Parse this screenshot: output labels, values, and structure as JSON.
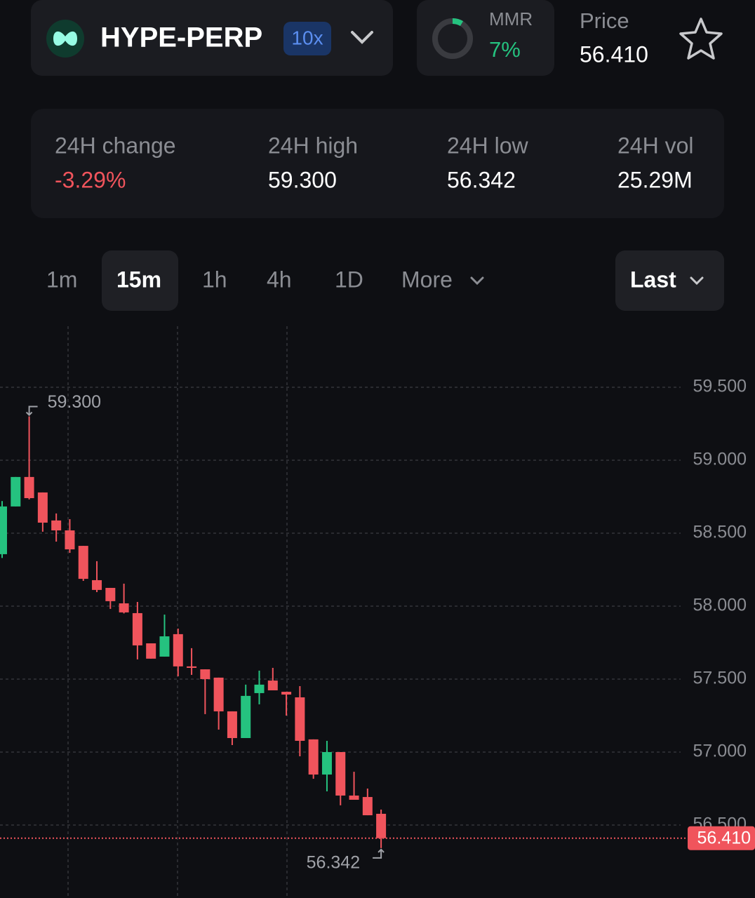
{
  "header": {
    "symbol": "HYPE-PERP",
    "leverage": "10x",
    "mmr_label": "MMR",
    "mmr_value": "7%",
    "price_label": "Price",
    "price_value": "56.410"
  },
  "stats": [
    {
      "label": "24H change",
      "value": "-3.29%"
    },
    {
      "label": "24H high",
      "value": "59.300"
    },
    {
      "label": "24H low",
      "value": "56.342"
    },
    {
      "label": "24H vol",
      "value": "25.29M"
    }
  ],
  "timeframes": [
    "1m",
    "15m",
    "1h",
    "4h",
    "1D",
    "More"
  ],
  "selected_timeframe": "15m",
  "price_mode": "Last",
  "chart_data": {
    "type": "candlestick",
    "up_color": "#25c27f",
    "down_color": "#f0545c",
    "open": [
      58.356,
      58.683,
      58.885,
      58.779,
      58.587,
      58.519,
      58.413,
      58.178,
      58.125,
      58.019,
      57.952,
      57.745,
      57.654,
      57.808,
      57.587,
      57.567,
      57.51,
      57.279,
      57.096,
      57.404,
      57.49,
      57.413,
      57.375,
      57.087,
      56.846,
      57.0,
      56.702,
      56.692,
      56.577
    ],
    "high": [
      58.72,
      58.885,
      59.3,
      58.779,
      58.635,
      58.596,
      58.413,
      58.308,
      58.125,
      58.154,
      58.029,
      57.745,
      57.942,
      57.846,
      57.712,
      57.567,
      57.51,
      57.279,
      57.462,
      57.558,
      57.577,
      57.413,
      57.452,
      57.087,
      57.077,
      57.0,
      56.865,
      56.75,
      56.606
    ],
    "low": [
      58.33,
      58.683,
      58.731,
      58.51,
      58.442,
      58.365,
      58.173,
      58.096,
      57.981,
      57.95,
      57.635,
      57.64,
      57.654,
      57.519,
      57.529,
      57.26,
      57.154,
      57.048,
      57.096,
      57.327,
      57.423,
      57.25,
      56.971,
      56.817,
      56.731,
      56.635,
      56.673,
      56.567,
      56.342
    ],
    "close": [
      58.683,
      58.885,
      58.74,
      58.572,
      58.519,
      58.389,
      58.187,
      58.111,
      58.034,
      57.957,
      57.731,
      57.64,
      57.793,
      57.587,
      57.577,
      57.5,
      57.279,
      57.096,
      57.385,
      57.462,
      57.423,
      57.394,
      57.077,
      56.846,
      57.0,
      56.702,
      56.673,
      56.567,
      56.41
    ],
    "ylim": [
      56.0,
      59.918
    ],
    "yticks": [
      {
        "value": 56.5,
        "label": "56.500"
      },
      {
        "value": 57,
        "label": "57.000"
      },
      {
        "value": 57.5,
        "label": "57.500"
      },
      {
        "value": 58,
        "label": "58.000"
      },
      {
        "value": 58.5,
        "label": "58.500"
      },
      {
        "value": 59,
        "label": "59.000"
      },
      {
        "value": 59.5,
        "label": "59.500"
      }
    ],
    "grid": true,
    "high_annotation": {
      "value": 59.3,
      "label": "59.300"
    },
    "low_annotation": {
      "value": 56.342,
      "label": "56.342"
    },
    "last_price": {
      "value": 56.41,
      "label": "56.410"
    },
    "last_price_color": "#f0545c"
  }
}
